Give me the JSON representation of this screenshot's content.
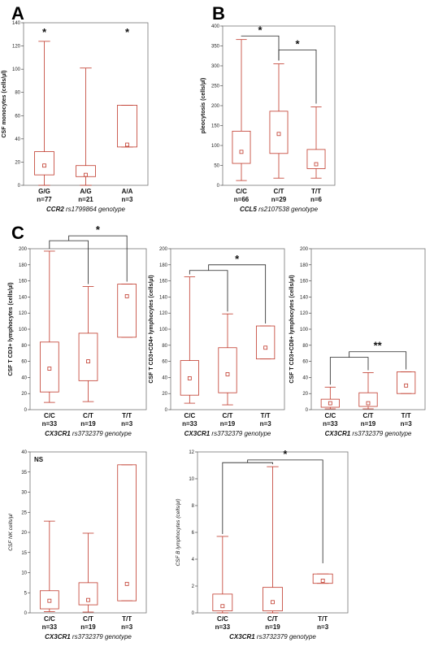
{
  "figure_labels": [
    "A",
    "B",
    "C"
  ],
  "colors": {
    "box": "#c0392b",
    "frame": "#777777",
    "text": "#111111"
  },
  "chart_data": [
    {
      "type": "box",
      "panel_label": "A",
      "ylabel": "CSF monocytes (cells/µl)",
      "xlabel_gene": "CCR2",
      "xlabel_rest": " rs1799864 genotype",
      "ylim": [
        0,
        140
      ],
      "yticks": [
        0,
        20,
        40,
        60,
        80,
        100,
        120,
        140
      ],
      "categories": [
        "G/G",
        "A/G",
        "A/A"
      ],
      "n_labels": [
        "n=77",
        "n=21",
        "n=3"
      ],
      "boxes": [
        {
          "min": 0,
          "q1": 9,
          "median": 17,
          "q3": 29,
          "max": 124
        },
        {
          "min": 0,
          "q1": 7.5,
          "median": 9,
          "q3": 17,
          "max": 101
        },
        {
          "min": 33,
          "q1": 33,
          "median": 35,
          "q3": 69,
          "max": 69
        }
      ],
      "significance": [
        {
          "type": "star",
          "category": 0,
          "text": "*"
        },
        {
          "type": "star",
          "category": 2,
          "text": "*"
        }
      ]
    },
    {
      "type": "box",
      "panel_label": "B",
      "ylabel": "pleocytosis (cells/µl)",
      "xlabel_gene": "CCL5",
      "xlabel_rest": " rs2107538 genotype",
      "ylim": [
        0,
        400
      ],
      "yticks": [
        0,
        50,
        100,
        150,
        200,
        250,
        300,
        350,
        400
      ],
      "categories": [
        "C/C",
        "C/T",
        "T/T"
      ],
      "n_labels": [
        "n=66",
        "n=29",
        "n=6"
      ],
      "boxes": [
        {
          "min": 12,
          "q1": 55,
          "median": 84,
          "q3": 136,
          "max": 366
        },
        {
          "min": 18,
          "q1": 80,
          "median": 129,
          "q3": 186,
          "max": 305
        },
        {
          "min": 18,
          "q1": 42,
          "median": 53,
          "q3": 90,
          "max": 197
        }
      ],
      "significance": [
        {
          "type": "bracket",
          "from": 0,
          "to": 1,
          "level": 375,
          "text": "*"
        },
        {
          "type": "bracket",
          "from": 1,
          "to": 2,
          "level": 340,
          "text": "*"
        }
      ]
    },
    {
      "type": "box",
      "panel_label": "C",
      "ylabel": "CSF T CD3+ lymphocytes (cells/µl)",
      "xlabel_gene": "CX3CR1",
      "xlabel_rest": " rs3732379 genotype",
      "ylim": [
        0,
        200
      ],
      "yticks": [
        0,
        20,
        40,
        60,
        80,
        100,
        120,
        140,
        160,
        180,
        200
      ],
      "categories": [
        "C/C",
        "C/T",
        "T/T"
      ],
      "n_labels": [
        "n=33",
        "n=19",
        "n=3"
      ],
      "boxes": [
        {
          "min": 9,
          "q1": 22,
          "median": 51,
          "q3": 84,
          "max": 197
        },
        {
          "min": 10,
          "q1": 36,
          "median": 60,
          "q3": 95,
          "max": 153
        },
        {
          "min": 90,
          "q1": 90,
          "median": 141,
          "q3": 156,
          "max": 156
        }
      ],
      "significance": [
        {
          "type": "bracket_group",
          "from": 0,
          "to": 1,
          "target": 2,
          "level": 210,
          "top": 216,
          "text": "*"
        }
      ]
    },
    {
      "type": "box",
      "ylabel": "CSF T CD3+CD4+ lymphocytes (cells/µl)",
      "xlabel_gene": "CX3CR1",
      "xlabel_rest": " rs3732379 genotype",
      "ylim": [
        0,
        200
      ],
      "yticks": [
        0,
        20,
        40,
        60,
        80,
        100,
        120,
        140,
        160,
        180,
        200
      ],
      "categories": [
        "C/C",
        "C/T",
        "T/T"
      ],
      "n_labels": [
        "n=33",
        "n=19",
        "n=3"
      ],
      "boxes": [
        {
          "min": 8,
          "q1": 18,
          "median": 39,
          "q3": 61,
          "max": 165
        },
        {
          "min": 6,
          "q1": 21,
          "median": 44,
          "q3": 77,
          "max": 119
        },
        {
          "min": 63,
          "q1": 63,
          "median": 77,
          "q3": 104,
          "max": 104
        }
      ],
      "significance": [
        {
          "type": "bracket_group",
          "from": 0,
          "to": 1,
          "target": 2,
          "level": 173,
          "top": 180,
          "text": "*"
        }
      ]
    },
    {
      "type": "box",
      "ylabel": "CSF T CD3+CD8+ lymphocytes (cells/µl)",
      "xlabel_gene": "CX3CR1",
      "xlabel_rest": " rs3732379 genotype",
      "ylim": [
        0,
        200
      ],
      "yticks": [
        0,
        20,
        40,
        60,
        80,
        100,
        120,
        140,
        160,
        180,
        200
      ],
      "categories": [
        "C/C",
        "C/T",
        "T/T"
      ],
      "n_labels": [
        "n=33",
        "n=19",
        "n=3"
      ],
      "boxes": [
        {
          "min": 1,
          "q1": 3,
          "median": 8,
          "q3": 13,
          "max": 28
        },
        {
          "min": 1,
          "q1": 4,
          "median": 8,
          "q3": 21,
          "max": 46
        },
        {
          "min": 20,
          "q1": 20,
          "median": 30,
          "q3": 47,
          "max": 47
        }
      ],
      "significance": [
        {
          "type": "bracket_group",
          "from": 0,
          "to": 1,
          "target": 2,
          "level": 65,
          "top": 72,
          "text": "**"
        }
      ]
    },
    {
      "type": "box",
      "corner_label": "NS",
      "ylabel": "CSF NK cells/µl",
      "ylabel_italic": true,
      "xlabel_gene": "CX3CR1",
      "xlabel_rest": " rs3732379 genotype",
      "ylim": [
        0,
        40
      ],
      "yticks": [
        0,
        5,
        10,
        15,
        20,
        25,
        30,
        35,
        40
      ],
      "categories": [
        "C/C",
        "C/T",
        "T/T"
      ],
      "n_labels": [
        "n=33",
        "n=19",
        "n=3"
      ],
      "boxes": [
        {
          "min": 0.3,
          "q1": 1,
          "median": 3,
          "q3": 5.5,
          "max": 22.8
        },
        {
          "min": 0.2,
          "q1": 2,
          "median": 3.2,
          "q3": 7.5,
          "max": 19.8
        },
        {
          "min": 3,
          "q1": 3,
          "median": 7.2,
          "q3": 36.8,
          "max": 36.8
        }
      ],
      "significance": []
    },
    {
      "type": "box",
      "ylabel": "CSF B lymphocytes (cells/µl)",
      "ylabel_italic": true,
      "xlabel_gene": "CX3CR1",
      "xlabel_rest": " rs3732379 genotype",
      "ylim": [
        0,
        12
      ],
      "yticks": [
        0,
        2,
        4,
        6,
        8,
        10,
        12
      ],
      "categories": [
        "C/C",
        "C/T",
        "T/T"
      ],
      "n_labels": [
        "n=33",
        "n=19",
        "n=3"
      ],
      "boxes": [
        {
          "min": 0,
          "q1": 0.15,
          "median": 0.5,
          "q3": 1.4,
          "max": 5.7
        },
        {
          "min": 0,
          "q1": 0.15,
          "median": 0.8,
          "q3": 1.9,
          "max": 10.9
        },
        {
          "min": 2.2,
          "q1": 2.2,
          "median": 2.4,
          "q3": 2.9,
          "max": 2.9
        }
      ],
      "significance": [
        {
          "type": "bracket_group",
          "from": 0,
          "to": 1,
          "target": 2,
          "level": 11.2,
          "top": 11.4,
          "text": "*",
          "drop_to": 3.7
        }
      ]
    }
  ]
}
